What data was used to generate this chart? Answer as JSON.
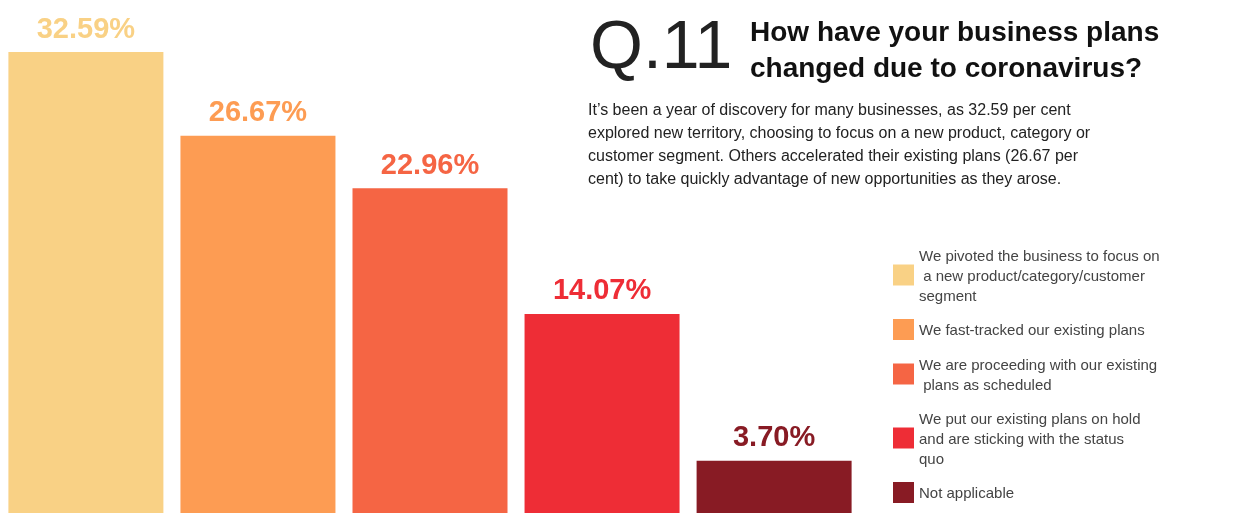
{
  "chart_data": {
    "type": "bar",
    "title": "How have your business plans changed due to coronavirus?",
    "annotations": [
      "Q.11",
      "It’s been a year of discovery for many businesses, as 32.59 per cent explored new territory, choosing to focus on a new product, category or customer segment. Others accelerated their existing plans (26.67 per cent) to take quickly advantage of new opportunities as they arose."
    ],
    "categories": [
      null
    ],
    "series": [
      {
        "name": "We pivoted the business to focus on a new product/category/customer segment",
        "color": "#f9d185",
        "values": [
          32.59
        ],
        "value_labels": [
          "32.59%"
        ]
      },
      {
        "name": "We fast-tracked our existing plans",
        "color": "#fd9c53",
        "values": [
          26.67
        ],
        "value_labels": [
          "26.67%"
        ]
      },
      {
        "name": "We are proceeding with our existing plans as scheduled",
        "color": "#f56544",
        "values": [
          22.96
        ],
        "value_labels": [
          "22.96%"
        ]
      },
      {
        "name": "We put our existing plans on hold and are sticking with the status quo",
        "color": "#ee2d36",
        "values": [
          14.07
        ],
        "value_labels": [
          "14.07%"
        ]
      },
      {
        "name": "Not applicable",
        "color": "#881b24",
        "values": [
          3.7
        ],
        "value_labels": [
          "3.70%"
        ]
      }
    ],
    "legend": "right"
  }
}
